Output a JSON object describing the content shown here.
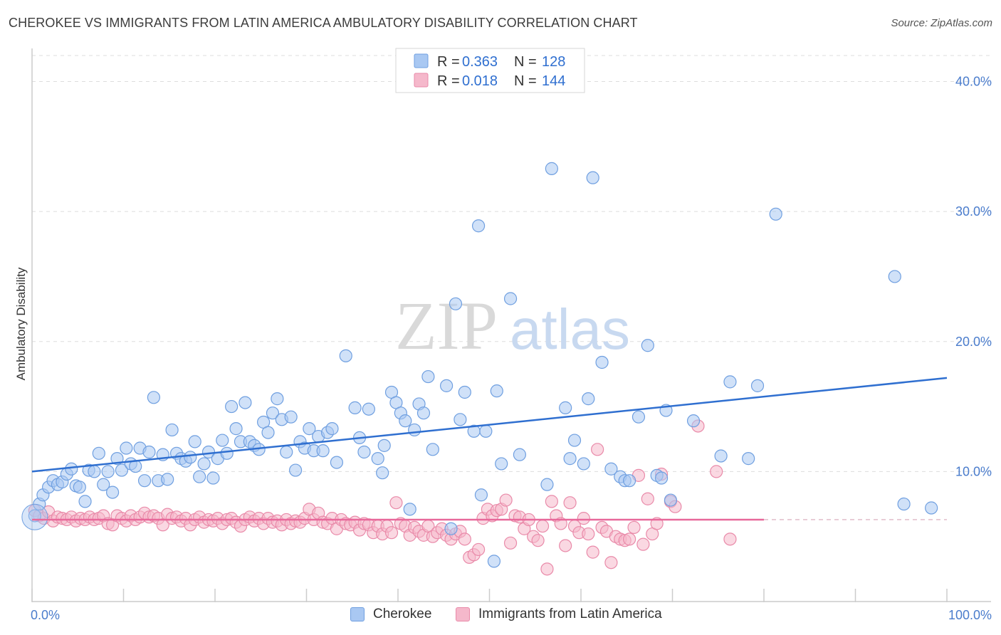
{
  "title": "CHEROKEE VS IMMIGRANTS FROM LATIN AMERICA AMBULATORY DISABILITY CORRELATION CHART",
  "source": "Source: ZipAtlas.com",
  "watermark": {
    "zip": "ZIP",
    "atlas": "atlas"
  },
  "colors": {
    "blue_fill": "#a9c8f2",
    "blue_stroke": "#6f9fe0",
    "blue_line": "#2f6fd0",
    "pink_fill": "#f5b8cb",
    "pink_stroke": "#e98aa9",
    "pink_line": "#e8689a",
    "grid": "#dddddd",
    "tick_label": "#4a7ccc",
    "r_value": "#2f6fd0"
  },
  "legend": {
    "rows": [
      {
        "r_label": "R =",
        "r_value": "0.363",
        "n_label": "N =",
        "n_value": "128",
        "color": "blue"
      },
      {
        "r_label": "R =",
        "r_value": "0.018",
        "n_label": "N =",
        "n_value": "144",
        "color": "pink"
      }
    ]
  },
  "chart_data": {
    "type": "scatter",
    "title": "CHEROKEE VS IMMIGRANTS FROM LATIN AMERICA AMBULATORY DISABILITY CORRELATION CHART",
    "xlabel": "",
    "ylabel": "Ambulatory Disability",
    "xlim": [
      0,
      100
    ],
    "ylim": [
      0,
      42
    ],
    "x_tick_labels": [
      "0.0%",
      "100.0%"
    ],
    "y_ticks": [
      10,
      20,
      30,
      40
    ],
    "y_tick_labels": [
      "10.0%",
      "20.0%",
      "30.0%",
      "40.0%"
    ],
    "grid": true,
    "legend_position": "top-center",
    "series": [
      {
        "name": "Cherokee",
        "color": "blue",
        "trend": {
          "x": [
            0,
            100
          ],
          "y": [
            10.0,
            17.2
          ]
        },
        "points": [
          [
            0.3,
            6.6
          ],
          [
            0.8,
            7.5
          ],
          [
            1.2,
            8.2
          ],
          [
            1.8,
            8.8
          ],
          [
            2.3,
            9.3
          ],
          [
            2.8,
            9.0
          ],
          [
            3.3,
            9.2
          ],
          [
            3.8,
            9.8
          ],
          [
            4.3,
            10.2
          ],
          [
            4.8,
            8.9
          ],
          [
            5.2,
            8.8
          ],
          [
            5.8,
            7.7
          ],
          [
            6.2,
            10.1
          ],
          [
            6.8,
            10.0
          ],
          [
            7.3,
            11.4
          ],
          [
            7.8,
            9.0
          ],
          [
            8.3,
            10.0
          ],
          [
            8.8,
            8.4
          ],
          [
            9.3,
            11.0
          ],
          [
            9.8,
            10.1
          ],
          [
            10.3,
            11.8
          ],
          [
            10.8,
            10.6
          ],
          [
            11.3,
            10.4
          ],
          [
            11.8,
            11.8
          ],
          [
            12.3,
            9.3
          ],
          [
            12.8,
            11.5
          ],
          [
            13.3,
            15.7
          ],
          [
            13.8,
            9.3
          ],
          [
            14.3,
            11.3
          ],
          [
            14.8,
            9.4
          ],
          [
            15.3,
            13.2
          ],
          [
            15.8,
            11.4
          ],
          [
            16.3,
            11.0
          ],
          [
            16.8,
            10.8
          ],
          [
            17.3,
            11.1
          ],
          [
            17.8,
            12.3
          ],
          [
            18.3,
            9.6
          ],
          [
            18.8,
            10.6
          ],
          [
            19.3,
            11.5
          ],
          [
            19.8,
            9.5
          ],
          [
            20.3,
            11.0
          ],
          [
            20.8,
            12.4
          ],
          [
            21.3,
            11.4
          ],
          [
            21.8,
            15.0
          ],
          [
            22.3,
            13.3
          ],
          [
            22.8,
            12.3
          ],
          [
            23.3,
            15.3
          ],
          [
            23.8,
            12.3
          ],
          [
            24.3,
            12.0
          ],
          [
            24.8,
            11.7
          ],
          [
            25.3,
            13.8
          ],
          [
            25.8,
            13.0
          ],
          [
            26.3,
            14.5
          ],
          [
            26.8,
            15.6
          ],
          [
            27.3,
            14.0
          ],
          [
            27.8,
            11.5
          ],
          [
            28.3,
            14.2
          ],
          [
            28.8,
            10.1
          ],
          [
            29.3,
            12.3
          ],
          [
            29.8,
            11.8
          ],
          [
            30.3,
            13.3
          ],
          [
            30.8,
            11.6
          ],
          [
            31.3,
            12.7
          ],
          [
            31.8,
            11.6
          ],
          [
            32.3,
            13.0
          ],
          [
            32.8,
            13.3
          ],
          [
            33.3,
            10.7
          ],
          [
            34.3,
            18.9
          ],
          [
            35.3,
            14.9
          ],
          [
            35.8,
            12.6
          ],
          [
            36.3,
            11.5
          ],
          [
            36.8,
            14.8
          ],
          [
            37.8,
            11.0
          ],
          [
            38.3,
            9.9
          ],
          [
            38.5,
            12.0
          ],
          [
            39.3,
            16.1
          ],
          [
            39.8,
            15.3
          ],
          [
            40.3,
            14.5
          ],
          [
            40.8,
            13.9
          ],
          [
            41.3,
            7.1
          ],
          [
            41.8,
            13.2
          ],
          [
            42.3,
            15.2
          ],
          [
            42.8,
            14.5
          ],
          [
            43.3,
            17.3
          ],
          [
            43.8,
            11.7
          ],
          [
            45.3,
            16.6
          ],
          [
            45.8,
            5.6
          ],
          [
            46.3,
            22.9
          ],
          [
            46.8,
            14.0
          ],
          [
            47.3,
            16.1
          ],
          [
            48.3,
            13.1
          ],
          [
            48.8,
            28.9
          ],
          [
            49.1,
            8.2
          ],
          [
            49.6,
            13.1
          ],
          [
            50.8,
            16.2
          ],
          [
            51.3,
            10.6
          ],
          [
            52.3,
            23.3
          ],
          [
            53.3,
            11.3
          ],
          [
            56.3,
            9.0
          ],
          [
            56.8,
            33.3
          ],
          [
            58.3,
            14.9
          ],
          [
            58.8,
            11.0
          ],
          [
            59.3,
            12.4
          ],
          [
            60.3,
            10.6
          ],
          [
            60.8,
            15.6
          ],
          [
            61.3,
            32.6
          ],
          [
            62.3,
            18.4
          ],
          [
            63.3,
            10.2
          ],
          [
            64.3,
            9.6
          ],
          [
            64.8,
            9.3
          ],
          [
            65.3,
            9.3
          ],
          [
            66.3,
            14.2
          ],
          [
            67.3,
            19.7
          ],
          [
            68.3,
            9.7
          ],
          [
            68.8,
            9.5
          ],
          [
            69.3,
            14.7
          ],
          [
            69.8,
            7.8
          ],
          [
            72.3,
            13.9
          ],
          [
            75.3,
            11.2
          ],
          [
            76.3,
            16.9
          ],
          [
            78.3,
            11.0
          ],
          [
            79.3,
            16.6
          ],
          [
            81.3,
            29.8
          ],
          [
            94.3,
            25.0
          ],
          [
            95.3,
            7.5
          ],
          [
            98.3,
            7.2
          ],
          [
            50.5,
            3.1
          ]
        ]
      },
      {
        "name": "Immigrants from Latin America",
        "color": "pink",
        "trend": {
          "x": [
            0,
            80
          ],
          "y": [
            6.3,
            6.3
          ]
        },
        "points": [
          [
            0.3,
            7.0
          ],
          [
            0.8,
            6.6
          ],
          [
            1.3,
            6.4
          ],
          [
            1.8,
            6.9
          ],
          [
            2.3,
            6.2
          ],
          [
            2.8,
            6.5
          ],
          [
            3.3,
            6.4
          ],
          [
            3.8,
            6.3
          ],
          [
            4.3,
            6.5
          ],
          [
            4.8,
            6.2
          ],
          [
            5.3,
            6.4
          ],
          [
            5.8,
            6.3
          ],
          [
            6.3,
            6.5
          ],
          [
            6.8,
            6.3
          ],
          [
            7.3,
            6.4
          ],
          [
            7.8,
            6.6
          ],
          [
            8.3,
            6.0
          ],
          [
            8.8,
            5.9
          ],
          [
            9.3,
            6.6
          ],
          [
            9.8,
            6.4
          ],
          [
            10.3,
            6.2
          ],
          [
            10.8,
            6.6
          ],
          [
            11.3,
            6.3
          ],
          [
            11.8,
            6.5
          ],
          [
            12.3,
            6.8
          ],
          [
            12.8,
            6.5
          ],
          [
            13.3,
            6.6
          ],
          [
            13.8,
            6.4
          ],
          [
            14.3,
            5.9
          ],
          [
            14.8,
            6.7
          ],
          [
            15.3,
            6.4
          ],
          [
            15.8,
            6.5
          ],
          [
            16.3,
            6.2
          ],
          [
            16.8,
            6.4
          ],
          [
            17.3,
            5.9
          ],
          [
            17.8,
            6.3
          ],
          [
            18.3,
            6.5
          ],
          [
            18.8,
            6.1
          ],
          [
            19.3,
            6.3
          ],
          [
            19.8,
            6.2
          ],
          [
            20.3,
            6.4
          ],
          [
            20.8,
            6.0
          ],
          [
            21.3,
            6.3
          ],
          [
            21.8,
            6.4
          ],
          [
            22.3,
            6.1
          ],
          [
            22.8,
            5.8
          ],
          [
            23.3,
            6.3
          ],
          [
            23.8,
            6.5
          ],
          [
            24.3,
            6.2
          ],
          [
            24.8,
            6.4
          ],
          [
            25.3,
            6.0
          ],
          [
            25.8,
            6.4
          ],
          [
            26.3,
            6.1
          ],
          [
            26.8,
            6.2
          ],
          [
            27.3,
            5.9
          ],
          [
            27.8,
            6.3
          ],
          [
            28.3,
            6.0
          ],
          [
            28.8,
            6.2
          ],
          [
            29.3,
            6.1
          ],
          [
            29.8,
            6.4
          ],
          [
            30.3,
            7.1
          ],
          [
            30.8,
            6.3
          ],
          [
            31.3,
            6.8
          ],
          [
            31.8,
            6.1
          ],
          [
            32.3,
            6.0
          ],
          [
            32.8,
            6.4
          ],
          [
            33.3,
            5.6
          ],
          [
            33.8,
            6.3
          ],
          [
            34.3,
            6.0
          ],
          [
            34.8,
            5.9
          ],
          [
            35.3,
            6.1
          ],
          [
            35.8,
            5.5
          ],
          [
            36.3,
            6.0
          ],
          [
            36.8,
            5.9
          ],
          [
            37.3,
            5.3
          ],
          [
            37.8,
            5.8
          ],
          [
            38.3,
            5.2
          ],
          [
            38.8,
            5.8
          ],
          [
            39.3,
            5.3
          ],
          [
            39.8,
            7.6
          ],
          [
            40.3,
            6.0
          ],
          [
            40.8,
            5.8
          ],
          [
            41.3,
            5.1
          ],
          [
            41.8,
            5.7
          ],
          [
            42.3,
            5.4
          ],
          [
            42.8,
            5.1
          ],
          [
            43.3,
            5.8
          ],
          [
            43.8,
            5.0
          ],
          [
            44.3,
            5.3
          ],
          [
            44.8,
            5.6
          ],
          [
            45.3,
            5.1
          ],
          [
            45.8,
            4.8
          ],
          [
            46.3,
            5.2
          ],
          [
            46.8,
            5.4
          ],
          [
            47.3,
            4.8
          ],
          [
            47.8,
            3.4
          ],
          [
            48.3,
            3.6
          ],
          [
            48.8,
            4.0
          ],
          [
            49.3,
            6.4
          ],
          [
            49.8,
            7.1
          ],
          [
            50.3,
            6.6
          ],
          [
            50.8,
            7.0
          ],
          [
            51.3,
            7.1
          ],
          [
            51.8,
            7.8
          ],
          [
            52.3,
            4.5
          ],
          [
            52.8,
            6.6
          ],
          [
            53.3,
            6.5
          ],
          [
            53.8,
            5.6
          ],
          [
            54.3,
            6.3
          ],
          [
            54.8,
            5.0
          ],
          [
            55.3,
            4.7
          ],
          [
            55.8,
            5.8
          ],
          [
            56.3,
            2.5
          ],
          [
            56.8,
            7.7
          ],
          [
            57.3,
            6.6
          ],
          [
            57.8,
            6.0
          ],
          [
            58.3,
            4.3
          ],
          [
            58.8,
            7.6
          ],
          [
            59.3,
            5.8
          ],
          [
            59.8,
            5.3
          ],
          [
            60.3,
            6.4
          ],
          [
            60.8,
            5.2
          ],
          [
            61.3,
            3.8
          ],
          [
            61.8,
            11.7
          ],
          [
            62.3,
            5.7
          ],
          [
            62.8,
            5.4
          ],
          [
            63.3,
            3.0
          ],
          [
            63.8,
            5.0
          ],
          [
            64.3,
            4.8
          ],
          [
            64.8,
            4.7
          ],
          [
            65.3,
            4.8
          ],
          [
            65.8,
            5.7
          ],
          [
            66.3,
            9.7
          ],
          [
            66.8,
            4.4
          ],
          [
            67.3,
            7.9
          ],
          [
            67.8,
            5.2
          ],
          [
            68.3,
            6.0
          ],
          [
            68.8,
            9.8
          ],
          [
            69.8,
            7.7
          ],
          [
            70.3,
            7.3
          ],
          [
            72.8,
            13.5
          ],
          [
            74.8,
            10.0
          ],
          [
            76.3,
            4.8
          ]
        ]
      }
    ]
  },
  "bottom_legend": [
    {
      "label": "Cherokee",
      "color": "blue"
    },
    {
      "label": "Immigrants from Latin America",
      "color": "pink"
    }
  ]
}
